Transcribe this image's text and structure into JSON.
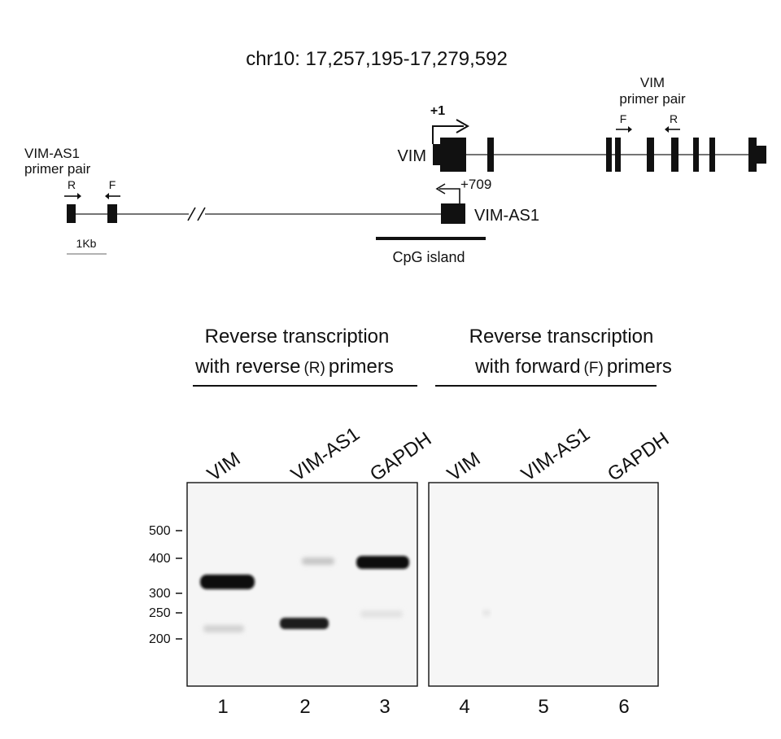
{
  "locus": {
    "coordinates": "chr10: 17,257,195-17,279,592",
    "vim_gene_label": "VIM",
    "vim_as1_gene_label": "VIM-AS1",
    "vim_tss_label": "+1",
    "vim_as1_tss_label": "+709",
    "cpg_island_label": "CpG island",
    "scale_bar_label": "1Kb",
    "vim_primer_pair": {
      "title_line1": "VIM",
      "title_line2": "primer pair",
      "forward_label": "F",
      "reverse_label": "R"
    },
    "vim_as1_primer_pair": {
      "title_line1": "VIM-AS1",
      "title_line2": "primer pair",
      "reverse_label": "R",
      "forward_label": "F"
    }
  },
  "gel": {
    "group_left": {
      "line1": "Reverse transcription",
      "line2_pre": "with reverse",
      "line2_paren": "(R)",
      "line2_post": "primers"
    },
    "group_right": {
      "line1": "Reverse transcription",
      "line2_pre": "with forward",
      "line2_paren": "(F)",
      "line2_post": "primers"
    },
    "lane_labels": [
      "VIM",
      "VIM-AS1",
      "GAPDH",
      "VIM",
      "VIM-AS1",
      "GAPDH"
    ],
    "lane_numbers": [
      "1",
      "2",
      "3",
      "4",
      "5",
      "6"
    ],
    "size_markers": [
      "500",
      "400",
      "300",
      "250",
      "200"
    ],
    "bands": [
      {
        "lane": 1,
        "size_bp": 320,
        "intensity": "strong"
      },
      {
        "lane": 1,
        "size_bp": 205,
        "intensity": "faint"
      },
      {
        "lane": 2,
        "size_bp": 372,
        "intensity": "faint"
      },
      {
        "lane": 2,
        "size_bp": 225,
        "intensity": "strong"
      },
      {
        "lane": 3,
        "size_bp": 375,
        "intensity": "strong"
      },
      {
        "lane": 3,
        "size_bp": 238,
        "intensity": "faint"
      }
    ]
  }
}
